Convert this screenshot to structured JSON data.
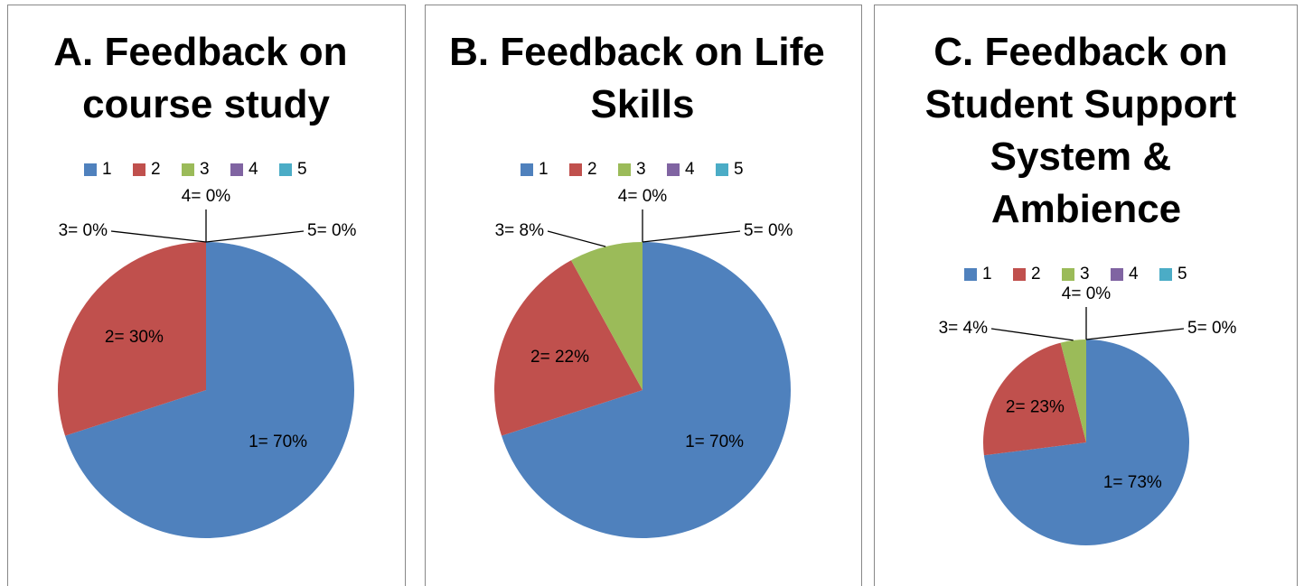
{
  "chart_data": [
    {
      "type": "pie",
      "title": "A. Feedback on course study",
      "categories": [
        "1",
        "2",
        "3",
        "4",
        "5"
      ],
      "values": [
        70,
        30,
        0,
        0,
        0
      ],
      "value_labels": [
        "1= 70%",
        "2= 30%",
        "3= 0%",
        "4= 0%",
        "5= 0%"
      ],
      "colors": [
        "#4f81bd",
        "#c0504d",
        "#9bbb59",
        "#8064a2",
        "#4bacc6"
      ],
      "legend": "top"
    },
    {
      "type": "pie",
      "title": "B. Feedback on Life Skills",
      "categories": [
        "1",
        "2",
        "3",
        "4",
        "5"
      ],
      "values": [
        70,
        22,
        8,
        0,
        0
      ],
      "value_labels": [
        "1= 70%",
        "2= 22%",
        "3= 8%",
        "4= 0%",
        "5= 0%"
      ],
      "colors": [
        "#4f81bd",
        "#c0504d",
        "#9bbb59",
        "#8064a2",
        "#4bacc6"
      ],
      "legend": "top"
    },
    {
      "type": "pie",
      "title": "C. Feedback on Student Support System & Ambience",
      "categories": [
        "1",
        "2",
        "3",
        "4",
        "5"
      ],
      "values": [
        73,
        23,
        4,
        0,
        0
      ],
      "value_labels": [
        "1= 73%",
        "2= 23%",
        "3= 4%",
        "4= 0%",
        "5= 0%"
      ],
      "colors": [
        "#4f81bd",
        "#c0504d",
        "#9bbb59",
        "#8064a2",
        "#4bacc6"
      ],
      "legend": "top"
    }
  ]
}
